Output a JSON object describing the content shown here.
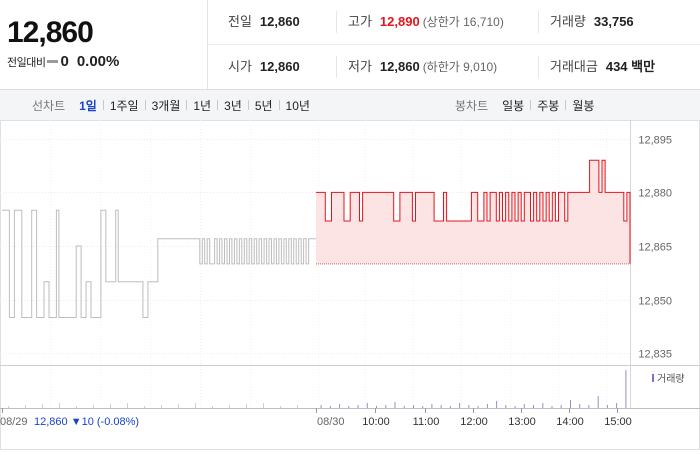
{
  "summary": {
    "price": "12,860",
    "change_label": "전일대비",
    "change_value": "0",
    "change_percent": "0.00%"
  },
  "stats": {
    "prev_close": {
      "label": "전일",
      "value": "12,860"
    },
    "high": {
      "label": "고가",
      "value": "12,890",
      "sub": "(상한가 16,710)"
    },
    "volume": {
      "label": "거래량",
      "value": "33,756"
    },
    "open": {
      "label": "시가",
      "value": "12,860"
    },
    "low": {
      "label": "저가",
      "value": "12,860",
      "sub": "(하한가 9,010)"
    },
    "amount": {
      "label": "거래대금",
      "value": "434 백만"
    }
  },
  "line_tabs": {
    "label": "선차트",
    "items": [
      {
        "label": "1일",
        "active": true
      },
      {
        "label": "1주일",
        "active": false
      },
      {
        "label": "3개월",
        "active": false
      },
      {
        "label": "1년",
        "active": false
      },
      {
        "label": "3년",
        "active": false
      },
      {
        "label": "5년",
        "active": false
      },
      {
        "label": "10년",
        "active": false
      }
    ]
  },
  "candle_tabs": {
    "label": "봉차트",
    "items": [
      {
        "label": "일봉"
      },
      {
        "label": "주봉"
      },
      {
        "label": "월봉"
      }
    ]
  },
  "chart_data": {
    "type": "line",
    "prev_day_label": "08/29",
    "prev_day_info": {
      "price": "12,860",
      "change": "10",
      "change_pct": "(-0.08%)"
    },
    "today_label": "08/30",
    "y_ticks": [
      "12,895",
      "12,880",
      "12,865",
      "12,850",
      "12,835"
    ],
    "y_tick_values": [
      12895,
      12880,
      12865,
      12850,
      12835
    ],
    "ylim": [
      12832,
      12898
    ],
    "x_ticks": [
      "10:00",
      "11:00",
      "12:00",
      "13:00",
      "14:00",
      "15:00"
    ],
    "base_price": 12860,
    "volume_label": "거래량",
    "colors": {
      "prev_day": "#bdbdbd",
      "today_line": "#e4141c",
      "today_fill": "#fde4e4",
      "volume_marker": "#8a6cc9"
    },
    "prev_day_series": [
      12875,
      12875,
      12875,
      12845,
      12845,
      12875,
      12875,
      12875,
      12845,
      12845,
      12845,
      12845,
      12875,
      12875,
      12845,
      12845,
      12845,
      12855,
      12855,
      12845,
      12845,
      12845,
      12875,
      12845,
      12845,
      12845,
      12845,
      12845,
      12845,
      12845,
      12865,
      12865,
      12845,
      12845,
      12855,
      12855,
      12845,
      12845,
      12845,
      12845,
      12875,
      12875,
      12855,
      12855,
      12855,
      12855,
      12875,
      12855,
      12855,
      12855,
      12855,
      12855,
      12855,
      12855,
      12855,
      12855,
      12855,
      12845,
      12845,
      12855,
      12855,
      12855,
      12855,
      12867,
      12867,
      12867,
      12867,
      12867,
      12867,
      12867,
      12867,
      12867,
      12867,
      12867,
      12867,
      12867,
      12867,
      12867,
      12867,
      12867,
      12860,
      12867,
      12860,
      12867,
      12860,
      12860,
      12867,
      12860,
      12867,
      12860,
      12867,
      12860,
      12867,
      12860,
      12867,
      12860,
      12867,
      12860,
      12867,
      12860,
      12867,
      12860,
      12867,
      12860,
      12867,
      12860,
      12867,
      12860,
      12867,
      12860,
      12867,
      12860,
      12867,
      12860,
      12867,
      12860,
      12867,
      12860,
      12867,
      12860,
      12867,
      12860,
      12867,
      12860,
      12867,
      12867,
      12867,
      12867
    ],
    "today_series": [
      12880,
      12880,
      12880,
      12872,
      12872,
      12880,
      12880,
      12880,
      12880,
      12872,
      12872,
      12880,
      12880,
      12880,
      12872,
      12880,
      12880,
      12880,
      12880,
      12880,
      12880,
      12880,
      12880,
      12880,
      12880,
      12872,
      12872,
      12880,
      12880,
      12880,
      12880,
      12872,
      12880,
      12880,
      12880,
      12880,
      12880,
      12880,
      12872,
      12872,
      12872,
      12880,
      12872,
      12872,
      12872,
      12872,
      12872,
      12872,
      12872,
      12872,
      12880,
      12880,
      12872,
      12872,
      12880,
      12872,
      12880,
      12880,
      12872,
      12880,
      12872,
      12880,
      12872,
      12880,
      12872,
      12880,
      12872,
      12880,
      12880,
      12872,
      12880,
      12872,
      12880,
      12872,
      12880,
      12872,
      12880,
      12872,
      12880,
      12880,
      12872,
      12880,
      12880,
      12880,
      12880,
      12880,
      12880,
      12880,
      12889,
      12889,
      12889,
      12880,
      12889,
      12880,
      12880,
      12880,
      12880,
      12880,
      12880,
      12872,
      12880,
      12860
    ],
    "volume_today": [
      3,
      2,
      4,
      2,
      3,
      5,
      2,
      3,
      6,
      2,
      3,
      2,
      4,
      3,
      2,
      5,
      3,
      2,
      4,
      7,
      3,
      2,
      4,
      3,
      5,
      2,
      3,
      8,
      4,
      3,
      12,
      3,
      5,
      38
    ]
  }
}
